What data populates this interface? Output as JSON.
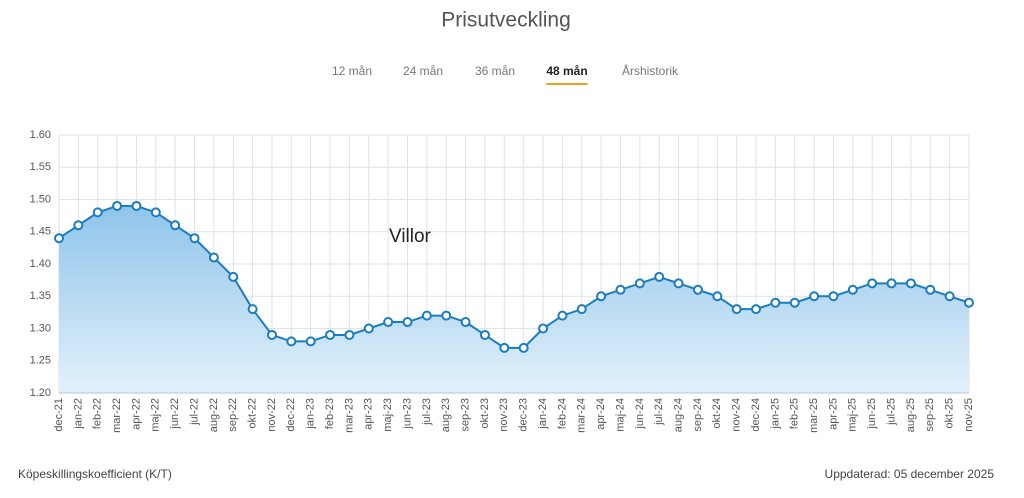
{
  "header": {
    "title": "Prisutveckling"
  },
  "tabs": [
    {
      "label": "12 mån",
      "active": false
    },
    {
      "label": "24 mån",
      "active": false
    },
    {
      "label": "36 mån",
      "active": false
    },
    {
      "label": "48 mån",
      "active": true
    },
    {
      "label": "Årshistorik",
      "active": false
    }
  ],
  "chart_data": {
    "type": "area",
    "categories": [
      "dec-21",
      "jan-22",
      "feb-22",
      "mar-22",
      "apr-22",
      "maj-22",
      "jun-22",
      "jul-22",
      "aug-22",
      "sep-22",
      "okt-22",
      "nov-22",
      "dec-22",
      "jan-23",
      "feb-23",
      "mar-23",
      "apr-23",
      "maj-23",
      "jun-23",
      "jul-23",
      "aug-23",
      "sep-23",
      "okt-23",
      "nov-23",
      "dec-23",
      "jan-24",
      "feb-24",
      "mar-24",
      "apr-24",
      "maj-24",
      "jun-24",
      "jul-24",
      "aug-24",
      "sep-24",
      "okt-24",
      "nov-24",
      "dec-24",
      "jan-25",
      "feb-25",
      "mar-25",
      "apr-25",
      "maj-25",
      "jun-25",
      "jul-25",
      "aug-25",
      "sep-25",
      "okt-25",
      "nov-25"
    ],
    "series": [
      {
        "name": "Villor",
        "color": "#1a7cc1",
        "values": [
          1.44,
          1.46,
          1.48,
          1.49,
          1.49,
          1.48,
          1.46,
          1.44,
          1.41,
          1.38,
          1.33,
          1.29,
          1.28,
          1.28,
          1.29,
          1.29,
          1.3,
          1.31,
          1.31,
          1.32,
          1.32,
          1.31,
          1.29,
          1.27,
          1.27,
          1.3,
          1.32,
          1.33,
          1.35,
          1.36,
          1.37,
          1.38,
          1.37,
          1.36,
          1.35,
          1.33,
          1.33,
          1.34,
          1.34,
          1.35,
          1.35,
          1.36,
          1.37,
          1.37,
          1.37,
          1.36,
          1.35,
          1.34
        ]
      }
    ],
    "ylim": [
      1.2,
      1.6
    ],
    "yticks": [
      {
        "value": 1.2,
        "label": "1.20"
      },
      {
        "value": 1.25,
        "label": "1.25"
      },
      {
        "value": 1.3,
        "label": "1.30"
      },
      {
        "value": 1.35,
        "label": "1.35"
      },
      {
        "value": 1.4,
        "label": "1.40"
      },
      {
        "value": 1.45,
        "label": "1.45"
      },
      {
        "value": 1.5,
        "label": "1.50"
      },
      {
        "value": 1.55,
        "label": "1.55"
      },
      {
        "value": 1.6,
        "label": "1.60"
      }
    ],
    "grid": true
  },
  "footer": {
    "left": "Köpeskillingskoefficient (K/T)",
    "right": "Uppdaterad: 05 december 2025"
  }
}
